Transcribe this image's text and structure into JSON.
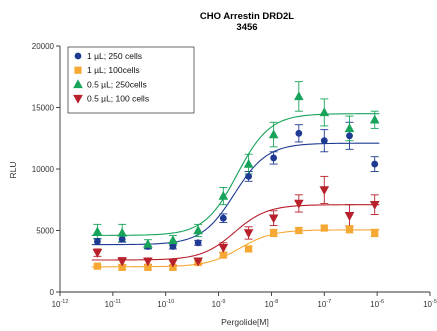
{
  "chart_data": {
    "type": "scatter",
    "title": "CHO Arrestin DRD2L",
    "subtitle": "3456",
    "xlabel": "Pergolide[M]",
    "ylabel": "RLU",
    "x_scale": "log",
    "xlim": [
      1e-12,
      1e-05
    ],
    "ylim": [
      0,
      20000
    ],
    "x_ticks": [
      {
        "base": "10",
        "exp": "-12",
        "value": 1e-12
      },
      {
        "base": "10",
        "exp": "-11",
        "value": 1e-11
      },
      {
        "base": "10",
        "exp": "-10",
        "value": 1e-10
      },
      {
        "base": "10",
        "exp": "-9",
        "value": 1e-09
      },
      {
        "base": "10",
        "exp": "-8",
        "value": 1e-08
      },
      {
        "base": "10",
        "exp": "-7",
        "value": 1e-07
      },
      {
        "base": "10",
        "exp": "-6",
        "value": 1e-06
      },
      {
        "base": "10",
        "exp": "-5",
        "value": 1e-05
      }
    ],
    "y_ticks": [
      "0",
      "5000",
      "10000",
      "15000",
      "20000"
    ],
    "legend_position": "top-left",
    "x": [
      5.1e-12,
      1.5e-11,
      4.6e-11,
      1.37e-10,
      4.1e-10,
      1.23e-09,
      3.7e-09,
      1.1e-08,
      3.3e-08,
      1e-07,
      3e-07,
      9e-07
    ],
    "series": [
      {
        "name": "1 µL; 250 cells",
        "marker": "circle",
        "color": "#1f3a93",
        "y": [
          4100,
          4300,
          3700,
          3700,
          4000,
          6000,
          9400,
          10900,
          12900,
          12300,
          12700,
          10400
        ],
        "err": [
          250,
          250,
          200,
          200,
          200,
          350,
          400,
          500,
          700,
          900,
          1100,
          600
        ],
        "fit": {
          "bottom": 3850,
          "top": 12100,
          "logEC50": -8.7,
          "hill": 1.4
        }
      },
      {
        "name": "1 µL; 100cells",
        "marker": "square",
        "color": "#f5a833",
        "y": [
          2100,
          2000,
          2000,
          2000,
          2400,
          3000,
          3500,
          4800,
          5000,
          5200,
          5100,
          4800
        ],
        "err": [
          150,
          150,
          150,
          150,
          150,
          200,
          200,
          300,
          250,
          200,
          300,
          300
        ],
        "fit": {
          "bottom": 2050,
          "top": 5050,
          "logEC50": -8.6,
          "hill": 1.4
        }
      },
      {
        "name": "0.5 µL; 250cells",
        "marker": "triangle-up",
        "color": "#17a35a",
        "y": [
          4900,
          4800,
          3900,
          4200,
          5000,
          7800,
          10400,
          12800,
          15900,
          14600,
          13300,
          14000
        ],
        "err": [
          600,
          700,
          350,
          400,
          500,
          700,
          800,
          1000,
          1200,
          1100,
          1000,
          700
        ],
        "fit": {
          "bottom": 4600,
          "top": 14500,
          "logEC50": -8.65,
          "hill": 1.4
        }
      },
      {
        "name": "0.5 µL; 100 cells",
        "marker": "triangle-down",
        "color": "#b8202b",
        "y": [
          3200,
          2500,
          2500,
          2400,
          2500,
          3600,
          4800,
          6000,
          7200,
          8300,
          6200,
          7100
        ],
        "err": [
          300,
          300,
          250,
          250,
          250,
          400,
          500,
          600,
          700,
          1100,
          900,
          800
        ],
        "fit": {
          "bottom": 2600,
          "top": 7100,
          "logEC50": -8.7,
          "hill": 1.4
        }
      }
    ]
  }
}
